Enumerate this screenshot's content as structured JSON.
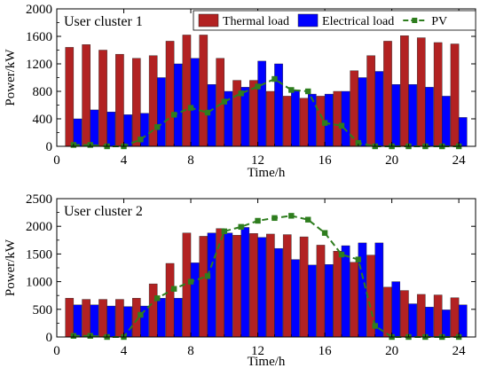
{
  "chart_data": [
    {
      "type": "bar",
      "title": "User cluster 1",
      "xlabel": "Time/h",
      "ylabel": "Power/kW",
      "xlim": [
        0,
        25
      ],
      "ylim": [
        0,
        2000
      ],
      "xticks": [
        0,
        4,
        8,
        12,
        16,
        20,
        24
      ],
      "yticks": [
        0,
        400,
        800,
        1200,
        1600,
        2000
      ],
      "legend": "top-right",
      "grid": false,
      "x": [
        1,
        2,
        3,
        4,
        5,
        6,
        7,
        8,
        9,
        10,
        11,
        12,
        13,
        14,
        15,
        16,
        17,
        18,
        19,
        20,
        21,
        22,
        23,
        24
      ],
      "series": [
        {
          "name": "Thermal load",
          "kind": "bar",
          "color": "#B22222",
          "values": [
            1440,
            1480,
            1400,
            1340,
            1280,
            1320,
            1530,
            1620,
            1620,
            1280,
            960,
            960,
            800,
            730,
            700,
            730,
            800,
            1100,
            1320,
            1530,
            1610,
            1580,
            1510,
            1490
          ]
        },
        {
          "name": "Electrical load",
          "kind": "bar",
          "color": "#0000FF",
          "values": [
            400,
            530,
            500,
            460,
            480,
            1000,
            1200,
            1280,
            900,
            800,
            860,
            1240,
            1200,
            820,
            760,
            760,
            800,
            1000,
            1090,
            900,
            900,
            860,
            730,
            420
          ]
        },
        {
          "name": "PV",
          "kind": "line",
          "color": "#2E7D1E",
          "values": [
            20,
            20,
            0,
            0,
            100,
            280,
            460,
            560,
            490,
            650,
            770,
            870,
            980,
            820,
            800,
            340,
            300,
            50,
            0,
            0,
            0,
            0,
            0,
            0
          ]
        }
      ]
    },
    {
      "type": "bar",
      "title": "User cluster 2",
      "xlabel": "Time/h",
      "ylabel": "Power/kW",
      "xlim": [
        0,
        25
      ],
      "ylim": [
        0,
        2500
      ],
      "xticks": [
        0,
        4,
        8,
        12,
        16,
        20,
        24
      ],
      "yticks": [
        0,
        500,
        1000,
        1500,
        2000,
        2500
      ],
      "grid": false,
      "x": [
        1,
        2,
        3,
        4,
        5,
        6,
        7,
        8,
        9,
        10,
        11,
        12,
        13,
        14,
        15,
        16,
        17,
        18,
        19,
        20,
        21,
        22,
        23,
        24
      ],
      "series": [
        {
          "name": "Thermal load",
          "kind": "bar",
          "color": "#B22222",
          "values": [
            700,
            680,
            680,
            680,
            700,
            960,
            1330,
            1880,
            1820,
            1960,
            1840,
            1870,
            1860,
            1850,
            1810,
            1660,
            1550,
            1350,
            1480,
            900,
            840,
            770,
            760,
            710
          ]
        },
        {
          "name": "Electrical load",
          "kind": "bar",
          "color": "#0000FF",
          "values": [
            580,
            580,
            560,
            550,
            560,
            700,
            700,
            1340,
            1880,
            1880,
            1980,
            1800,
            1600,
            1400,
            1300,
            1310,
            1650,
            1700,
            1700,
            1000,
            600,
            540,
            490,
            580
          ]
        },
        {
          "name": "PV",
          "kind": "line",
          "color": "#2E7D1E",
          "values": [
            20,
            20,
            0,
            0,
            400,
            700,
            870,
            1000,
            1100,
            1910,
            1990,
            2100,
            2150,
            2190,
            2120,
            1880,
            1490,
            1400,
            200,
            0,
            0,
            0,
            0,
            0
          ]
        }
      ]
    }
  ]
}
